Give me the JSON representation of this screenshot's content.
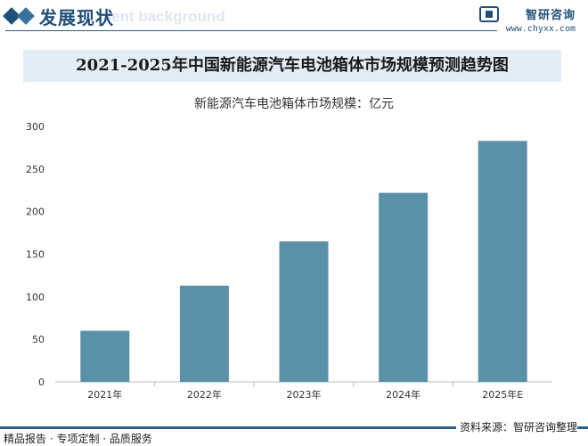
{
  "header": {
    "section_title": "发展现状",
    "section_subtitle": "ment background",
    "logo_text": "智研咨询",
    "logo_url": "www.chyxx.com"
  },
  "chart_data": {
    "type": "bar",
    "title": "2021-2025年中国新能源汽车电池箱体市场规模预测趋势图",
    "ylabel": "新能源汽车电池箱体市场规模：亿元",
    "xlabel": "",
    "categories": [
      "2021年",
      "2022年",
      "2023年",
      "2024年",
      "2025年E"
    ],
    "values": [
      60,
      113,
      165,
      222,
      283
    ],
    "ylim": [
      0,
      300
    ],
    "yticks": [
      0,
      50,
      100,
      150,
      200,
      250,
      300
    ],
    "bar_color": "#5b91a8",
    "grid": false,
    "legend": "none"
  },
  "footer": {
    "left": "精品报告 · 专项定制 · 品质服务",
    "source": "资料来源：智研咨询整理"
  },
  "colors": {
    "brand": "#1f4f7a",
    "title_bg": "#e3edf6",
    "footer_line": "#2b5d8c"
  }
}
